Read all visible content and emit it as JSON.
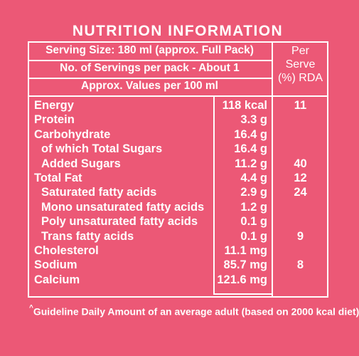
{
  "title": "NUTRITION INFORMATION",
  "serving_size": "Serving Size: 180 ml (approx. Full Pack)",
  "servings_per_pack": "No. of Servings per pack - About 1",
  "approx_values": "Approx. Values per 100 ml",
  "rda_header_line1": "Per",
  "rda_header_line2": "Serve",
  "rda_header_line3": "(%) RDA",
  "rows": [
    {
      "name": "Energy",
      "value": "118 kcal",
      "rda": "11"
    },
    {
      "name": "Protein",
      "value": "3.3 g",
      "rda": ""
    },
    {
      "name": "Carbohydrate",
      "value": "16.4 g",
      "rda": ""
    },
    {
      "name": "of which Total Sugars",
      "value": "16.4 g",
      "rda": ""
    },
    {
      "name": "Added Sugars",
      "value": "11.2 g",
      "rda": "40"
    },
    {
      "name": "Total Fat",
      "value": "4.4 g",
      "rda": "12"
    },
    {
      "name": "Saturated fatty acids",
      "value": "2.9 g",
      "rda": "24"
    },
    {
      "name": "Mono unsaturated fatty acids",
      "value": "1.2 g",
      "rda": ""
    },
    {
      "name": "Poly unsaturated fatty acids",
      "value": "0.1 g",
      "rda": ""
    },
    {
      "name": "Trans fatty acids",
      "value": "0.1 g",
      "rda": "9"
    },
    {
      "name": "Cholesterol",
      "value": "11.1 mg",
      "rda": ""
    },
    {
      "name": "Sodium",
      "value": "85.7 mg",
      "rda": "8"
    },
    {
      "name": "Calcium",
      "value": "121.6 mg",
      "rda": ""
    }
  ],
  "footnote_marker": "^",
  "footnote": "Guideline Daily Amount of an average adult (based on 2000 kcal diet)"
}
